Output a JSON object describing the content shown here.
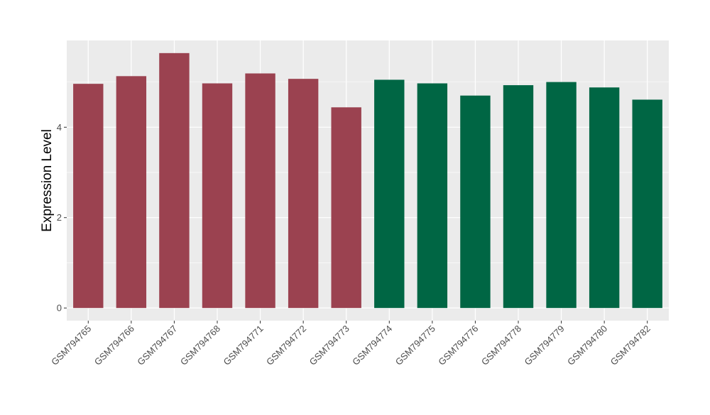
{
  "chart_data": {
    "type": "bar",
    "title": "",
    "xlabel": "",
    "ylabel": "Expression Level",
    "categories": [
      "GSM794765",
      "GSM794766",
      "GSM794767",
      "GSM794768",
      "GSM794771",
      "GSM794772",
      "GSM794773",
      "GSM794774",
      "GSM794775",
      "GSM794776",
      "GSM794778",
      "GSM794779",
      "GSM794780",
      "GSM794782"
    ],
    "values": [
      4.96,
      5.13,
      5.64,
      4.97,
      5.19,
      5.07,
      4.44,
      5.05,
      4.97,
      4.7,
      4.93,
      5.0,
      4.88,
      4.61
    ],
    "groups": [
      "a",
      "a",
      "a",
      "a",
      "a",
      "a",
      "a",
      "b",
      "b",
      "b",
      "b",
      "b",
      "b",
      "b"
    ],
    "group_colors": {
      "a": "#9b4250",
      "b": "#006644"
    },
    "yticks": [
      0,
      2,
      4
    ],
    "ylim": [
      -0.28,
      5.92
    ],
    "grid": true,
    "legend": "none",
    "panel_background": "#ebebeb",
    "grid_color": "#ffffff"
  }
}
